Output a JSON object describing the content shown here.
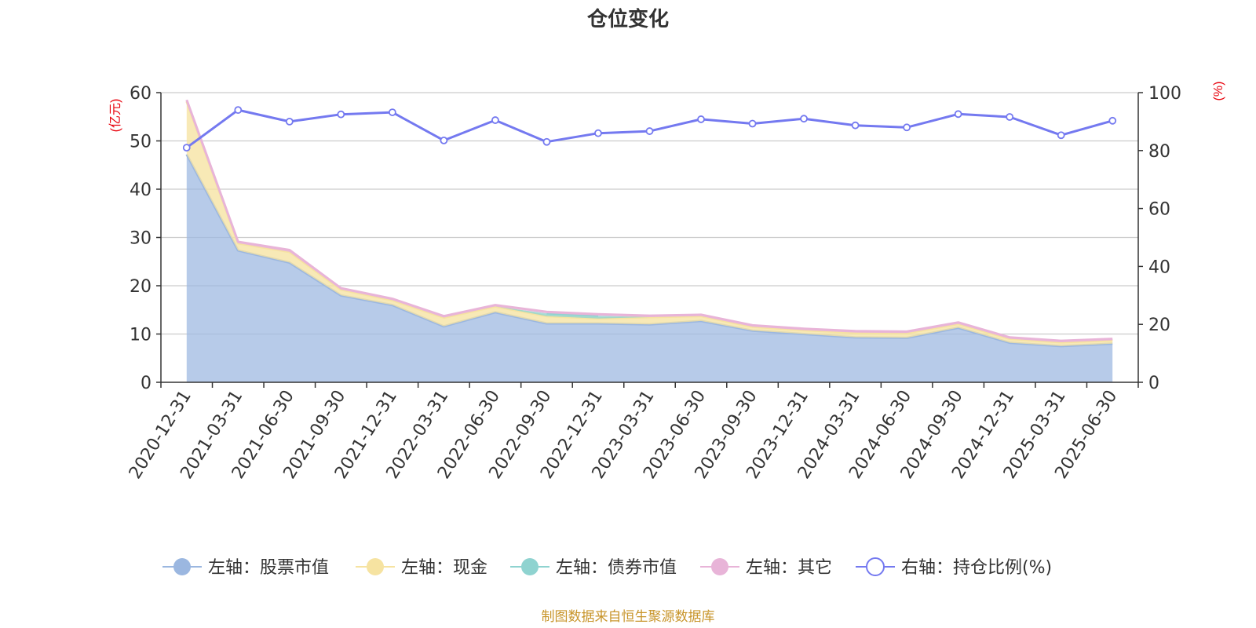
{
  "chart_data": {
    "type": "area",
    "title": "仓位变化",
    "y_left_unit": "(亿元)",
    "y_right_unit": "(%)",
    "x": [
      "2020-12-31",
      "2021-03-31",
      "2021-06-30",
      "2021-09-30",
      "2021-12-31",
      "2022-03-31",
      "2022-06-30",
      "2022-09-30",
      "2022-12-31",
      "2023-03-31",
      "2023-06-30",
      "2023-09-30",
      "2023-12-31",
      "2024-03-31",
      "2024-06-30",
      "2024-09-30",
      "2024-12-31",
      "2025-03-31",
      "2025-06-30"
    ],
    "y_left_ticks": [
      0,
      10,
      20,
      30,
      40,
      50,
      60
    ],
    "y_right_ticks": [
      0,
      20,
      40,
      60,
      80,
      100
    ],
    "ylim_left": [
      0,
      60
    ],
    "ylim_right": [
      0,
      100
    ],
    "stacked": true,
    "series": [
      {
        "name": "左轴：股票市值",
        "axis": "left",
        "color": "#9bb7e0",
        "values": [
          47.2,
          27.3,
          24.8,
          18.0,
          16.0,
          11.6,
          14.5,
          12.2,
          12.2,
          12.0,
          12.7,
          10.7,
          10.0,
          9.3,
          9.2,
          11.3,
          8.2,
          7.5,
          8.0
        ]
      },
      {
        "name": "左轴：现金",
        "axis": "left",
        "color": "#f6e3a1",
        "values": [
          11.0,
          1.5,
          2.2,
          1.2,
          1.0,
          1.8,
          1.2,
          1.5,
          1.0,
          1.5,
          1.0,
          0.8,
          0.8,
          1.0,
          1.0,
          0.8,
          0.8,
          0.8,
          0.7
        ]
      },
      {
        "name": "左轴：债券市值",
        "axis": "left",
        "color": "#8fd3d0",
        "values": [
          0,
          0,
          0,
          0,
          0,
          0,
          0,
          0.6,
          0.6,
          0,
          0,
          0,
          0,
          0,
          0,
          0,
          0,
          0,
          0
        ]
      },
      {
        "name": "左轴：其它",
        "axis": "left",
        "color": "#e8b4d8",
        "values": [
          0.3,
          0.3,
          0.4,
          0.3,
          0.3,
          0.3,
          0.3,
          0.3,
          0.3,
          0.3,
          0.3,
          0.3,
          0.3,
          0.3,
          0.3,
          0.3,
          0.3,
          0.3,
          0.3
        ]
      },
      {
        "name": "右轴：持仓比例(%)",
        "axis": "right",
        "color": "#7479f0",
        "values": [
          81,
          94,
          90,
          92.5,
          93.2,
          83.5,
          90.5,
          83,
          86,
          86.7,
          90.8,
          89.3,
          91,
          88.7,
          88,
          92.6,
          91.6,
          85.3,
          90.3
        ]
      }
    ],
    "legend_position": "bottom",
    "grid": true
  },
  "footer": {
    "source": "制图数据来自恒生聚源数据库"
  },
  "colors": {
    "title": "#333333",
    "axis_unit": "#e8000b",
    "source": "#c8952b",
    "grid": "#cccccc",
    "axis": "#333333"
  }
}
